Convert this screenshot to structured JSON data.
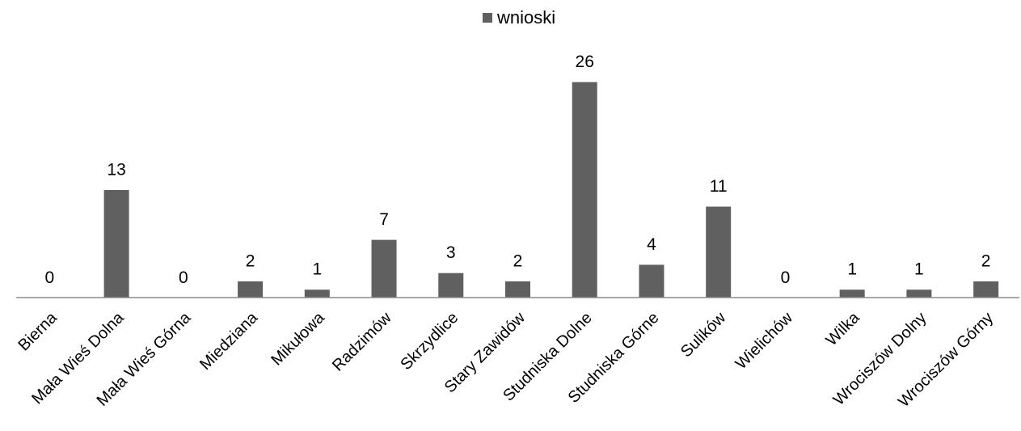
{
  "chart_data": {
    "type": "bar",
    "title": "",
    "xlabel": "",
    "ylabel": "",
    "legend_position": "top",
    "grid": false,
    "bar_color": "#606060",
    "axis_color": "#8c8c8c",
    "ylim": [
      0,
      26
    ],
    "categories": [
      "Bierna",
      "Mała Wieś Dolna",
      "Mała Wieś Górna",
      "Miedziana",
      "Mikułowa",
      "Radzimów",
      "Skrzydlice",
      "Stary Zawidów",
      "Studniska Dolne",
      "Studniska Górne",
      "Sulików",
      "Wielichów",
      "Wilka",
      "Wrociszów Dolny",
      "Wrociszów Górny"
    ],
    "series": [
      {
        "name": "wnioski",
        "values": [
          0,
          13,
          0,
          2,
          1,
          7,
          3,
          2,
          26,
          4,
          11,
          0,
          1,
          1,
          2
        ]
      }
    ]
  }
}
